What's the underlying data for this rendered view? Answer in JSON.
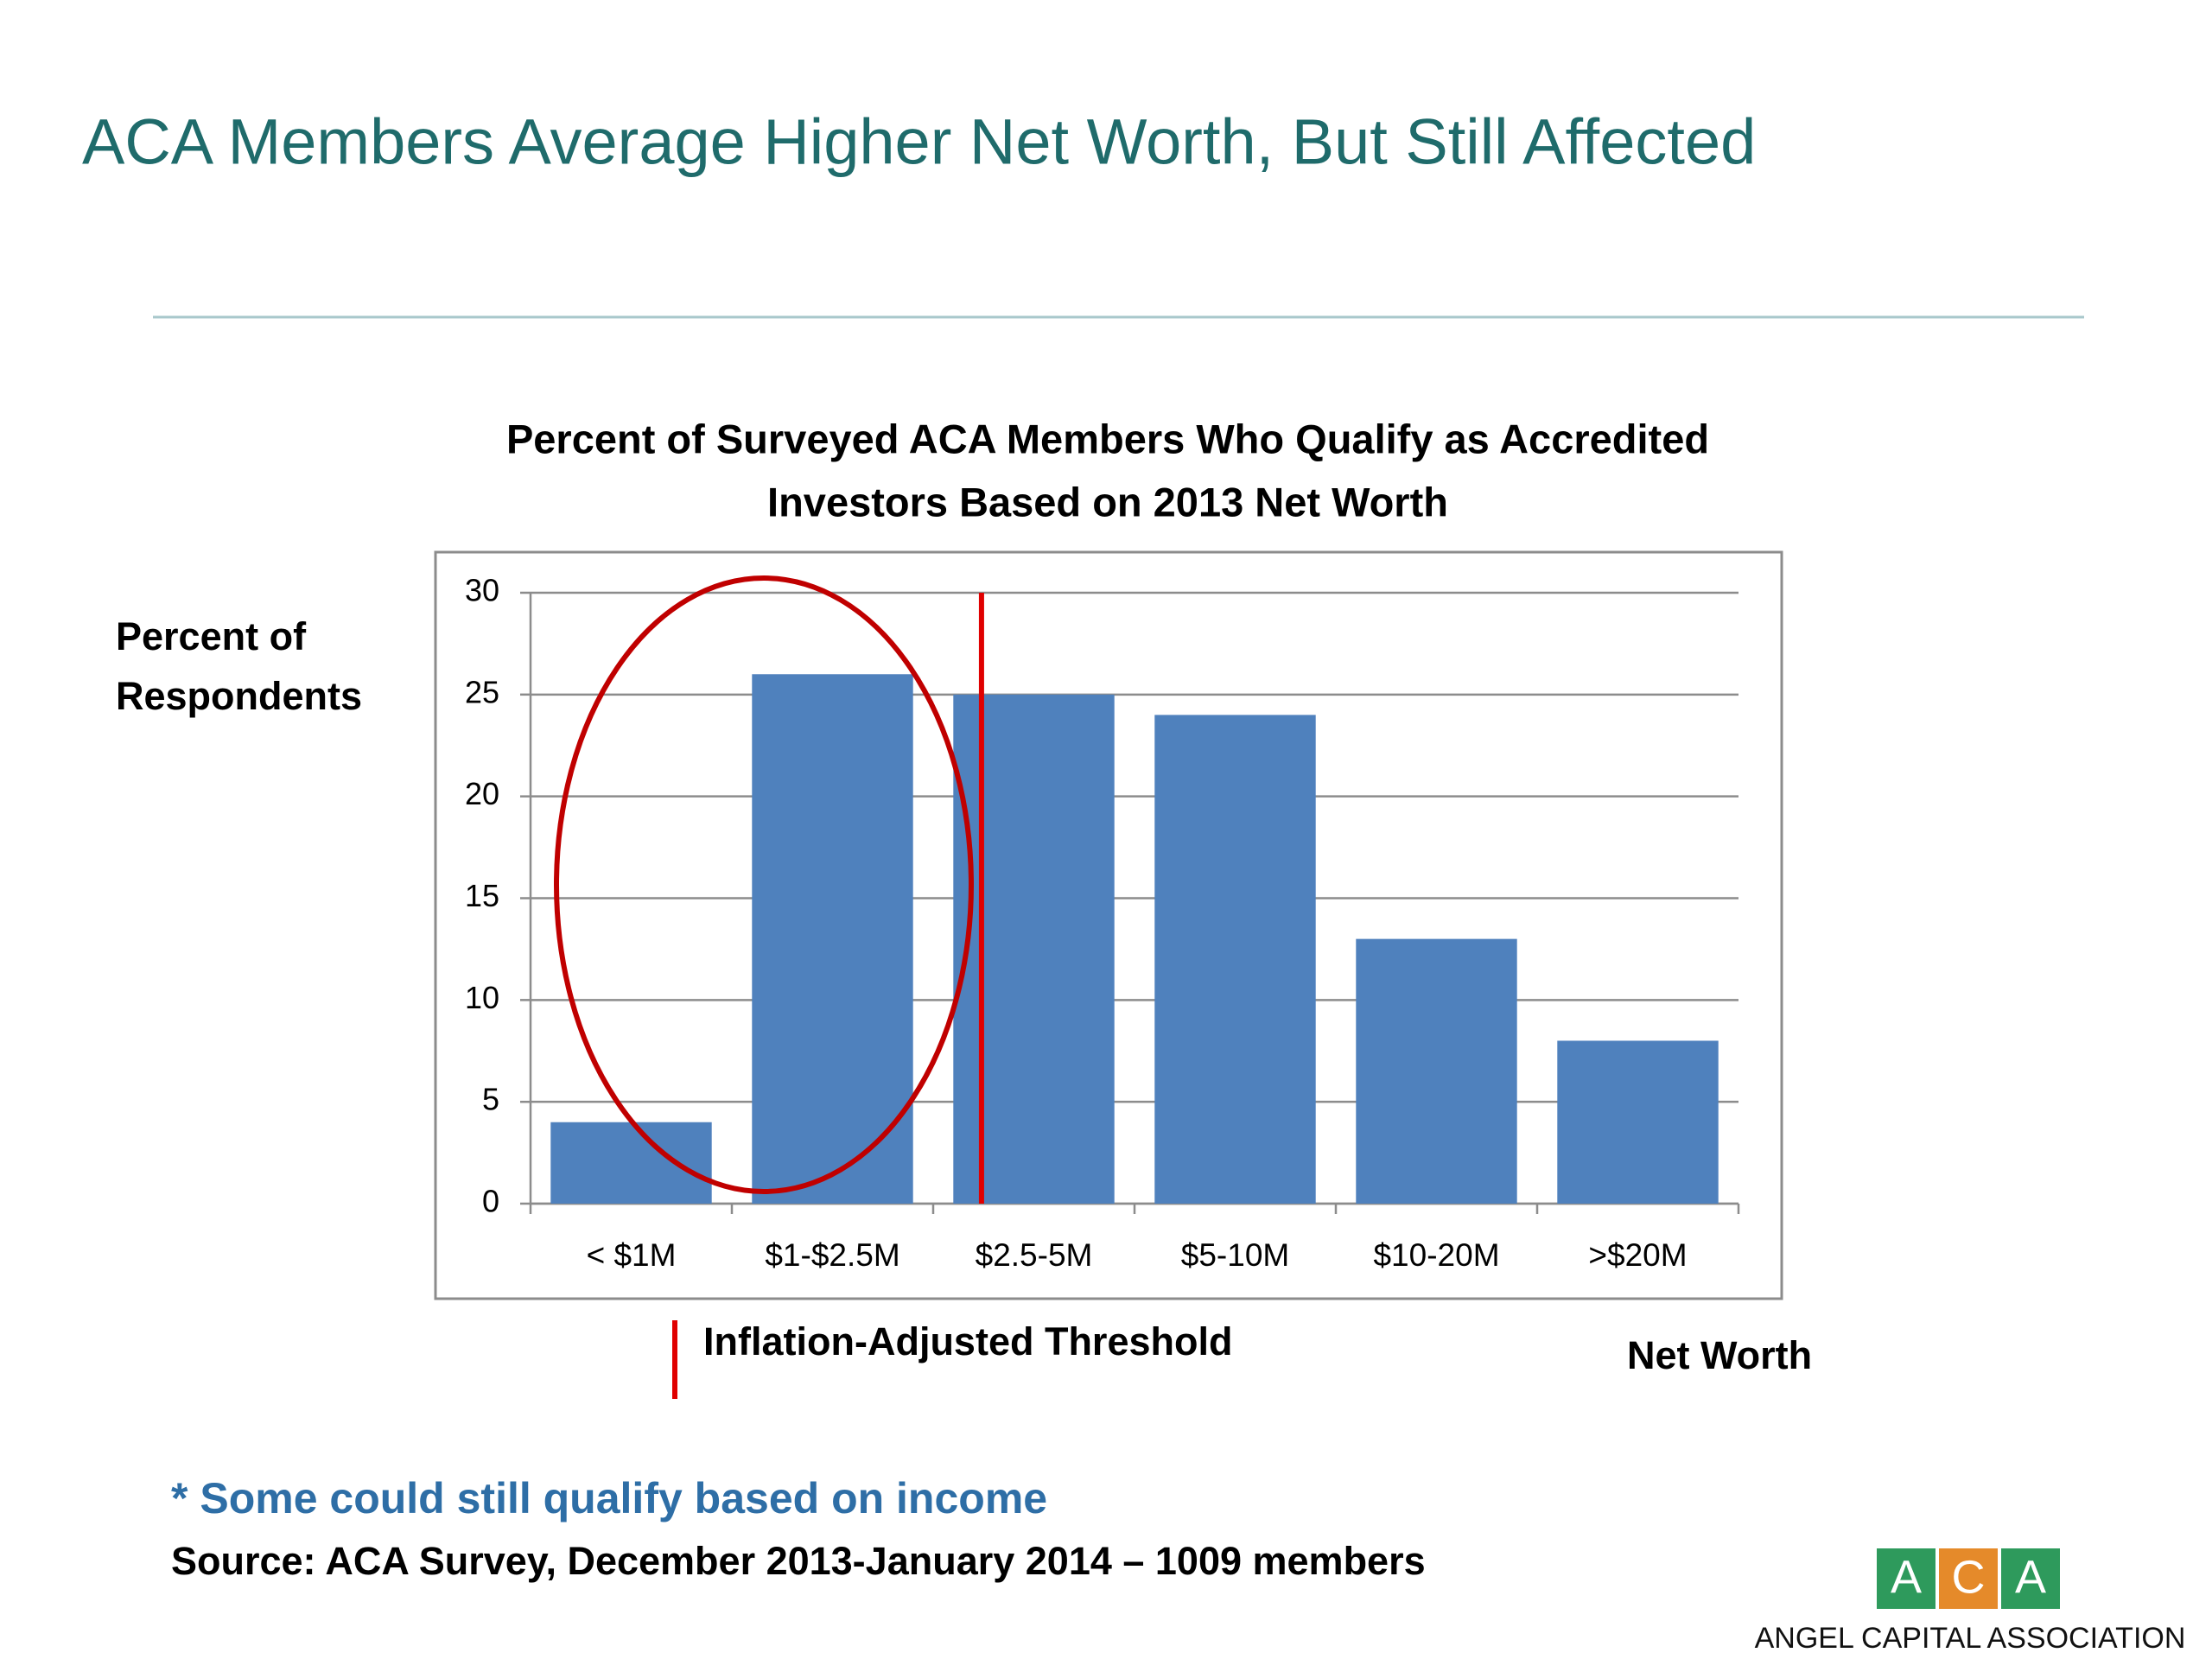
{
  "title": "ACA Members Average Higher Net Worth, But Still Affected",
  "chart_data": {
    "type": "bar",
    "title": [
      "Percent of Surveyed ACA Members Who Qualify as Accredited",
      "Investors Based on 2013 Net Worth"
    ],
    "y_label": [
      "Percent of",
      "Respondents"
    ],
    "x_label": "Net Worth",
    "categories": [
      "< $1M",
      "$1-$2.5M",
      "$2.5-5M",
      "$5-10M",
      "$10-20M",
      ">$20M"
    ],
    "values": [
      4,
      26,
      25,
      24,
      13,
      8
    ],
    "color": "#4f81bd",
    "ylim": [
      0,
      30
    ],
    "yticks": [
      0,
      5,
      10,
      15,
      20,
      25,
      30
    ],
    "grid": true,
    "threshold_label": "Inflation-Adjusted Threshold"
  },
  "footnote": "* Some could still qualify based on income",
  "source": "Source:  ACA Survey, December 2013-January 2014 – 1009 members",
  "logo": {
    "letters": [
      "A",
      "C",
      "A"
    ],
    "name": "ANGEL CAPITAL ASSOCIATION"
  }
}
